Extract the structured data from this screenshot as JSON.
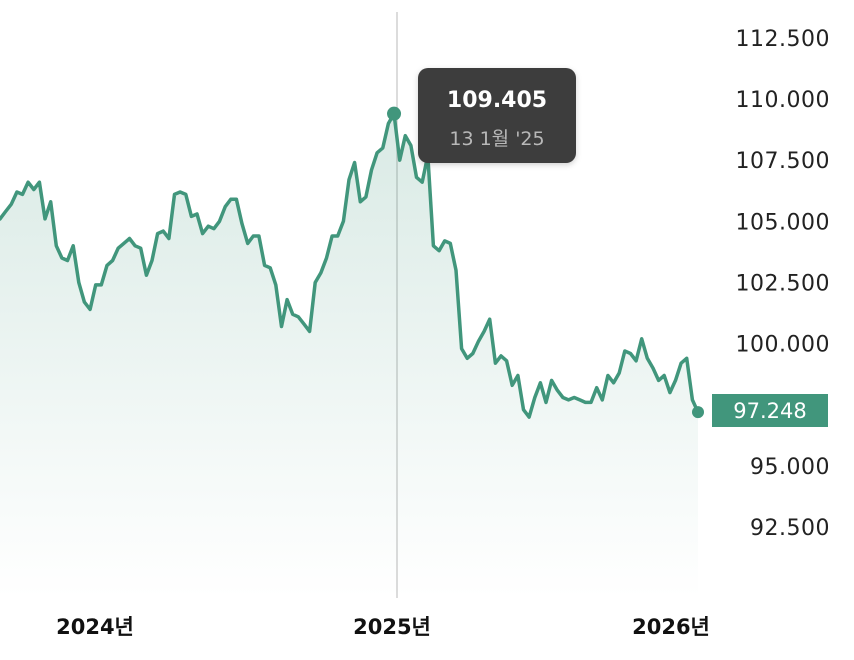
{
  "chart_data": {
    "type": "area",
    "xlabel": "",
    "ylabel": "",
    "ylim": [
      90.0,
      113.5
    ],
    "y_ticks": [
      "112.500",
      "110.000",
      "107.500",
      "105.000",
      "102.500",
      "100.000",
      "95.000",
      "92.500"
    ],
    "x_ticks": [
      "2024년",
      "2025년",
      "2026년"
    ],
    "grid": false,
    "colors": {
      "line": "#41967c",
      "fill": "#41967c",
      "tooltip_bg": "#3e3e3e",
      "crosshair": "#d0d0d0"
    },
    "tooltip": {
      "value": "109.405",
      "date": "13 1월 '25"
    },
    "last_value_label": "97.248",
    "series": [
      {
        "values": [
          105.1,
          105.4,
          105.7,
          106.2,
          106.1,
          106.6,
          106.3,
          106.6,
          105.1,
          105.8,
          104.0,
          103.5,
          103.4,
          104.0,
          102.5,
          101.7,
          101.4,
          102.4,
          102.4,
          103.2,
          103.4,
          103.9,
          104.1,
          104.3,
          104.0,
          103.9,
          102.8,
          103.4,
          104.5,
          104.6,
          104.3,
          106.1,
          106.2,
          106.1,
          105.2,
          105.3,
          104.5,
          104.8,
          104.7,
          105.0,
          105.6,
          105.9,
          105.9,
          104.9,
          104.1,
          104.4,
          104.4,
          103.2,
          103.1,
          102.4,
          100.7,
          101.8,
          101.2,
          101.1,
          100.8,
          100.5,
          102.5,
          102.9,
          103.5,
          104.4,
          104.4,
          105.0,
          106.7,
          107.4,
          105.8,
          106.0,
          107.1,
          107.8,
          108.0,
          109.0,
          109.4,
          107.5,
          108.5,
          108.1,
          106.8,
          106.6,
          107.7,
          104.0,
          103.8,
          104.2,
          104.1,
          103.0,
          99.8,
          99.4,
          99.6,
          100.1,
          100.5,
          101.0,
          99.2,
          99.5,
          99.3,
          98.3,
          98.7,
          97.3,
          97.0,
          97.8,
          98.4,
          97.6,
          98.5,
          98.1,
          97.8,
          97.7,
          97.8,
          97.7,
          97.6,
          97.6,
          98.2,
          97.7,
          98.7,
          98.4,
          98.8,
          99.7,
          99.6,
          99.3,
          100.2,
          99.4,
          99.0,
          98.5,
          98.7,
          98.0,
          98.5,
          99.2,
          99.4,
          97.7,
          97.2
        ]
      }
    ],
    "tooltip_index": 70
  }
}
